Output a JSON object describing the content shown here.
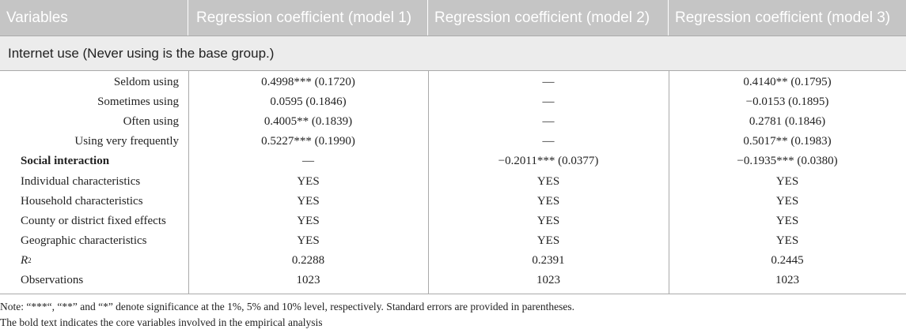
{
  "header": {
    "variables": "Variables",
    "model1": "Regression coefficient (model 1)",
    "model2": "Regression coefficient (model 2)",
    "model3": "Regression coefficient (model 3)"
  },
  "group_label": "Internet use (Never using is the base group.)",
  "rows": [
    {
      "label": "Seldom using",
      "m1": "0.4998*** (0.1720)",
      "m2": "—",
      "m3": "0.4140** (0.1795)"
    },
    {
      "label": "Sometimes using",
      "m1": "0.0595 (0.1846)",
      "m2": "—",
      "m3": "−0.0153 (0.1895)"
    },
    {
      "label": "Often using",
      "m1": "0.4005** (0.1839)",
      "m2": "—",
      "m3": "0.2781 (0.1846)"
    },
    {
      "label": "Using very frequently",
      "m1": "0.5227*** (0.1990)",
      "m2": "—",
      "m3": "0.5017** (0.1983)"
    },
    {
      "label": "Social interaction",
      "m1": "—",
      "m2": "−0.2011*** (0.0377)",
      "m3": "−0.1935*** (0.0380)"
    },
    {
      "label": "Individual characteristics",
      "m1": "YES",
      "m2": "YES",
      "m3": "YES"
    },
    {
      "label": "Household characteristics",
      "m1": "YES",
      "m2": "YES",
      "m3": "YES"
    },
    {
      "label": "County or district fixed effects",
      "m1": "YES",
      "m2": "YES",
      "m3": "YES"
    },
    {
      "label": "Geographic characteristics",
      "m1": "YES",
      "m2": "YES",
      "m3": "YES"
    },
    {
      "label_base": "R",
      "label_sup": "2",
      "m1": "0.2288",
      "m2": "0.2391",
      "m3": "0.2445"
    },
    {
      "label": "Observations",
      "m1": "1023",
      "m2": "1023",
      "m3": "1023"
    }
  ],
  "notes": [
    "Note: “***“, “**” and “*” denote significance at the 1%, 5% and 10% level, respectively. Standard errors are provided in parentheses.",
    "The bold text indicates the core variables involved in the empirical analysis"
  ]
}
